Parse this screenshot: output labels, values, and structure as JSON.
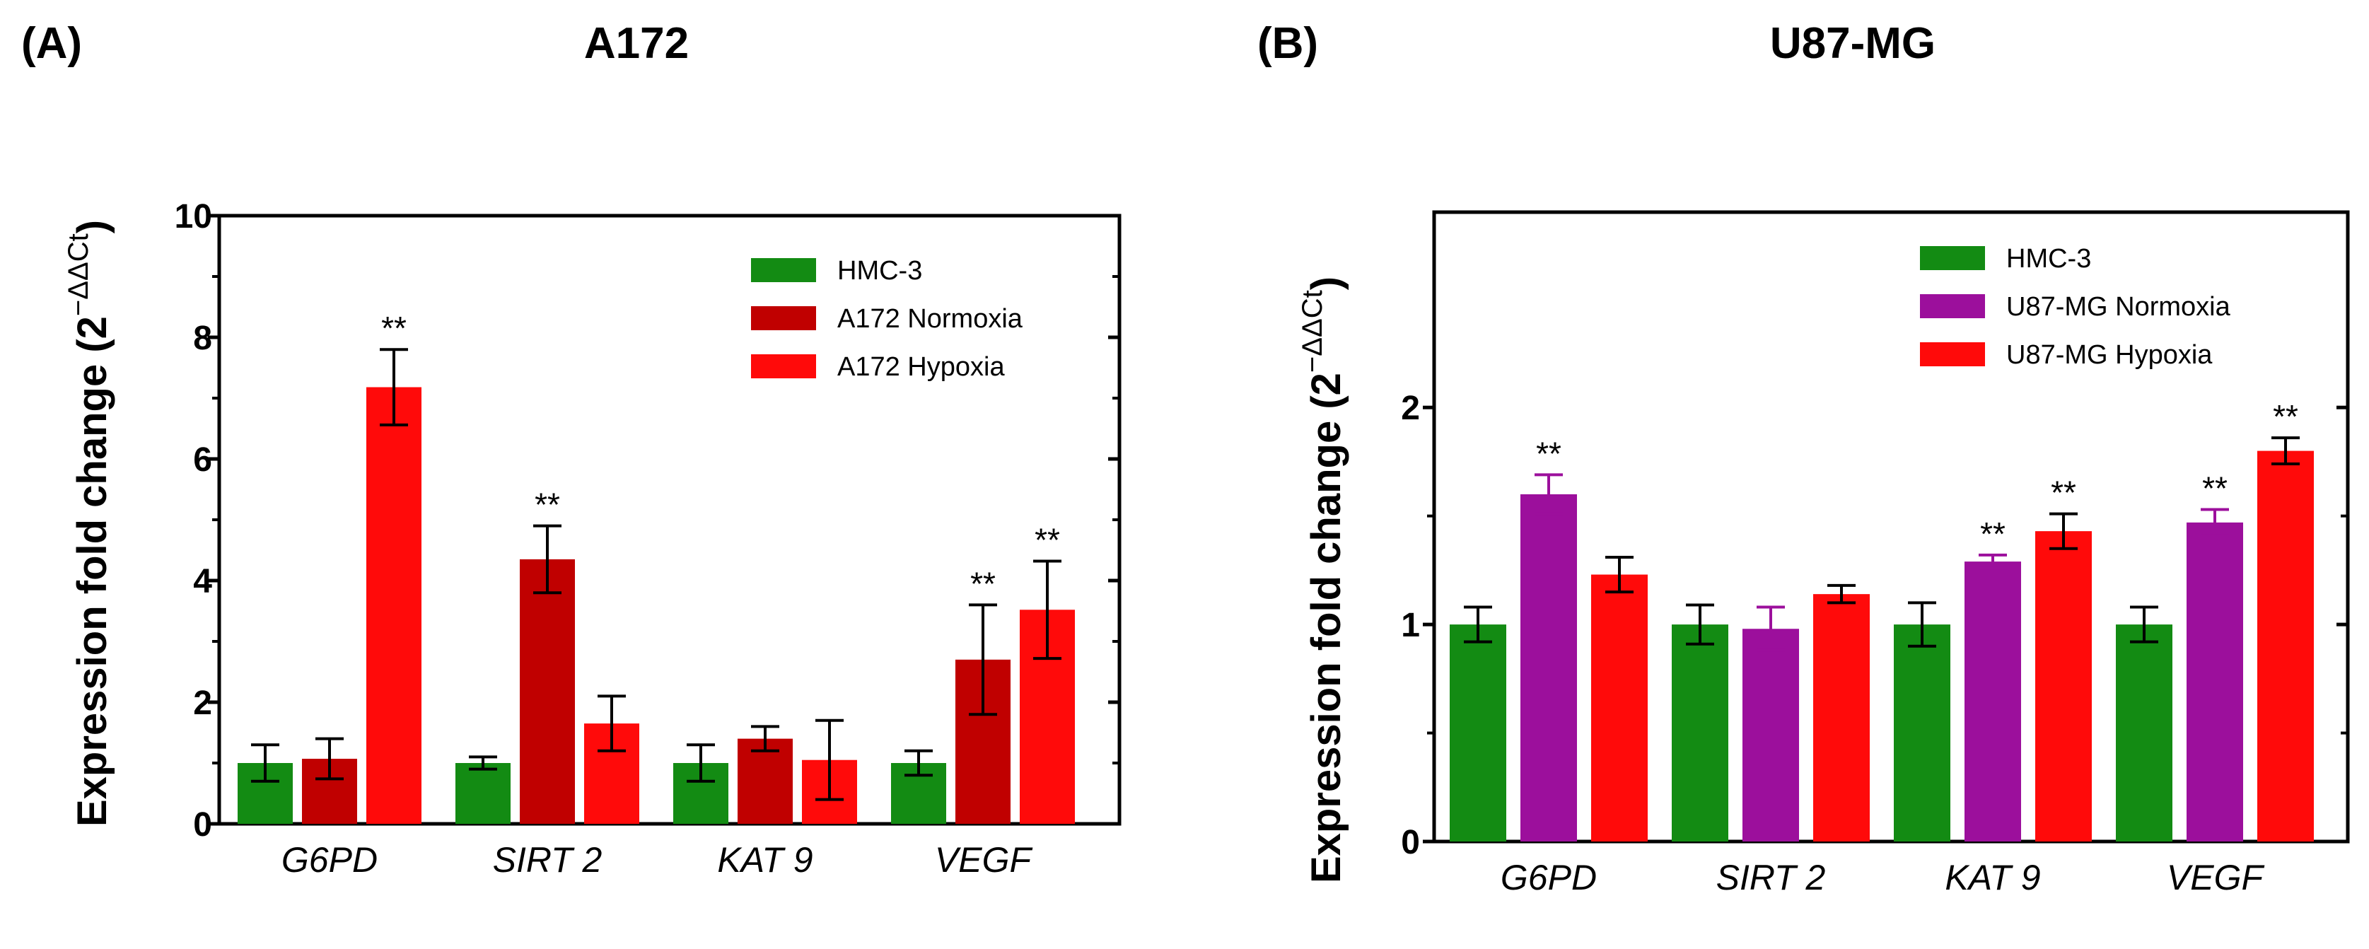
{
  "chart_data": [
    {
      "type": "bar",
      "panel_label": "(A)",
      "title": "A172",
      "ylabel": "Expression fold change (2",
      "ylabel_superscript": "−ΔΔCt",
      "ylabel_close": ")",
      "ylim": [
        0,
        10
      ],
      "yticks": [
        0,
        2,
        4,
        6,
        8,
        10
      ],
      "ytick_labels": [
        "0",
        "2",
        "4",
        "6",
        "8",
        "10"
      ],
      "categories": [
        "G6PD",
        "SIRT 2",
        "KAT 9",
        "VEGF"
      ],
      "legend_position": "top-right",
      "significance_marker": "**",
      "series": [
        {
          "name": "HMC-3",
          "color": "#138b13",
          "values": [
            1.0,
            1.0,
            1.0,
            1.0
          ],
          "errors": [
            0.3,
            0.1,
            0.3,
            0.2
          ],
          "significant": [
            false,
            false,
            false,
            false
          ]
        },
        {
          "name": "A172 Normoxia",
          "color": "#c00000",
          "values": [
            1.07,
            4.35,
            1.4,
            2.7
          ],
          "errors": [
            0.33,
            0.55,
            0.2,
            0.9
          ],
          "significant": [
            false,
            true,
            false,
            true
          ]
        },
        {
          "name": "A172 Hypoxia",
          "color": "#ff0a0a",
          "values": [
            7.18,
            1.65,
            1.05,
            3.52
          ],
          "errors": [
            0.62,
            0.45,
            0.65,
            0.8
          ],
          "significant": [
            true,
            false,
            false,
            true
          ]
        }
      ]
    },
    {
      "type": "bar",
      "panel_label": "(B)",
      "title": "U87-MG",
      "ylabel": "Expression fold change (2",
      "ylabel_superscript": "−ΔΔCt",
      "ylabel_close": ")",
      "ylim": [
        0,
        2.9
      ],
      "yticks": [
        0,
        1,
        2
      ],
      "ytick_labels": [
        "0",
        "1",
        "2"
      ],
      "categories": [
        "G6PD",
        "SIRT 2",
        "KAT 9",
        "VEGF"
      ],
      "legend_position": "top-right",
      "significance_marker": "**",
      "series": [
        {
          "name": "HMC-3",
          "color": "#138b13",
          "values": [
            1.0,
            1.0,
            1.0,
            1.0
          ],
          "errors": [
            0.08,
            0.09,
            0.1,
            0.08
          ],
          "significant": [
            false,
            false,
            false,
            false
          ]
        },
        {
          "name": "U87-MG Normoxia",
          "color": "#9c0f9c",
          "values": [
            1.6,
            0.98,
            1.29,
            1.47
          ],
          "errors": [
            0.09,
            0.1,
            0.03,
            0.06
          ],
          "significant": [
            true,
            false,
            true,
            true
          ]
        },
        {
          "name": "U87-MG Hypoxia",
          "color": "#ff0a0a",
          "values": [
            1.23,
            1.14,
            1.43,
            1.8
          ],
          "errors": [
            0.08,
            0.04,
            0.08,
            0.06
          ],
          "significant": [
            false,
            false,
            true,
            true
          ]
        }
      ]
    }
  ]
}
